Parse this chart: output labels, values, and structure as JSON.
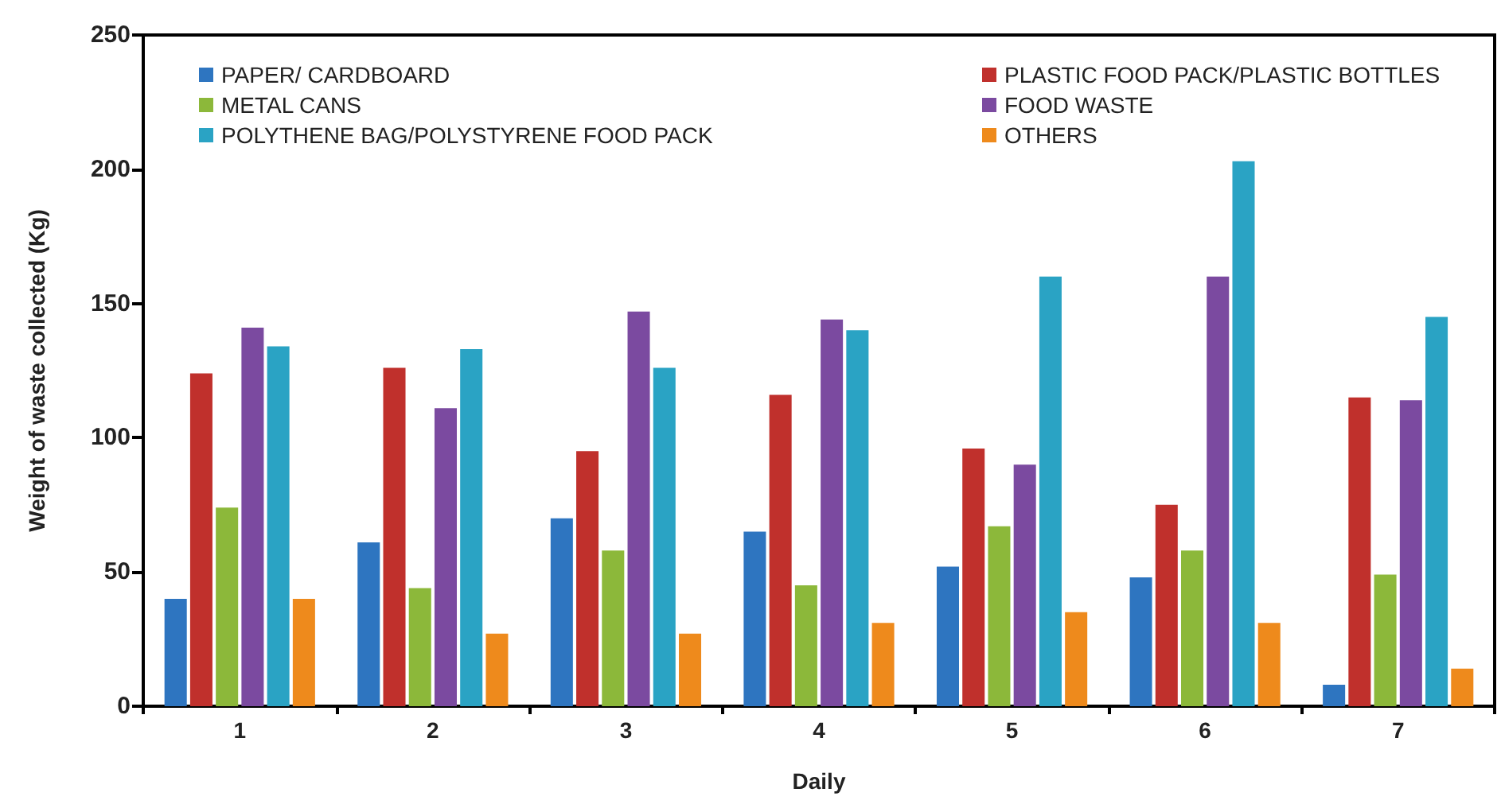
{
  "chart_data": {
    "type": "bar",
    "xlabel": "Daily",
    "ylabel": "Weight of waste collected (Kg)",
    "categories": [
      "1",
      "2",
      "3",
      "4",
      "5",
      "6",
      "7"
    ],
    "series": [
      {
        "name": "PAPER/ CARDBOARD",
        "color": "#2e75c0",
        "values": [
          40,
          61,
          70,
          65,
          52,
          48,
          8
        ]
      },
      {
        "name": "PLASTIC FOOD PACK/PLASTIC BOTTLES",
        "color": "#c0302c",
        "values": [
          124,
          126,
          95,
          116,
          96,
          75,
          115
        ]
      },
      {
        "name": "METAL CANS",
        "color": "#8cb83a",
        "values": [
          74,
          44,
          58,
          45,
          67,
          58,
          49
        ]
      },
      {
        "name": "FOOD WASTE",
        "color": "#7b4aa0",
        "values": [
          141,
          111,
          147,
          144,
          90,
          160,
          114
        ]
      },
      {
        "name": "POLYTHENE BAG/POLYSTYRENE FOOD PACK",
        "color": "#2aa3c4",
        "values": [
          134,
          133,
          126,
          140,
          160,
          203,
          145
        ]
      },
      {
        "name": "OTHERS",
        "color": "#ee8a1c",
        "values": [
          40,
          27,
          27,
          31,
          35,
          31,
          14
        ]
      }
    ],
    "ylim": [
      0,
      250
    ],
    "yticks": [
      0,
      50,
      100,
      150,
      200,
      250
    ],
    "grid": false,
    "legend": "top"
  }
}
